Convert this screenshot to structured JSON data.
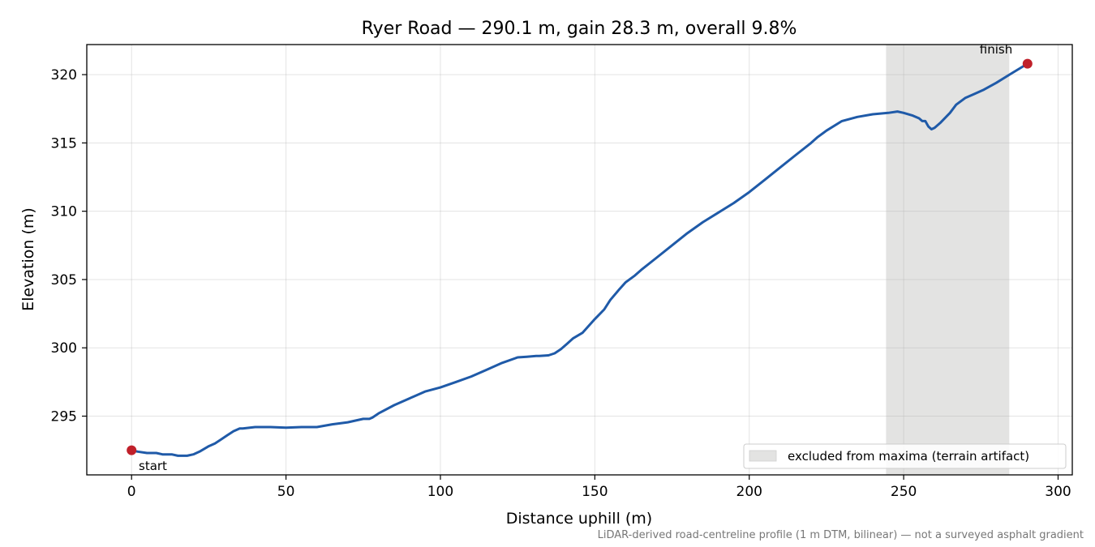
{
  "chart_data": {
    "type": "line",
    "title": "Ryer Road — 290.1 m, gain 28.3 m, overall 9.8%",
    "xlabel": "Distance uphill (m)",
    "ylabel": "Elevation (m)",
    "xlim": [
      -14.5,
      304.6
    ],
    "ylim": [
      290.7,
      322.2
    ],
    "xticks": [
      0,
      50,
      100,
      150,
      200,
      250,
      300
    ],
    "yticks": [
      295,
      300,
      305,
      310,
      315,
      320
    ],
    "xtick_labels": [
      "0",
      "50",
      "100",
      "150",
      "200",
      "250",
      "300"
    ],
    "ytick_labels": [
      "295",
      "300",
      "305",
      "310",
      "315",
      "320"
    ],
    "grid": true,
    "line_color": "#1f5aa8",
    "marker_color": "#c0202a",
    "shade_color": "#e3e3e2",
    "series": [
      {
        "x": [
          0,
          2,
          5,
          8,
          10,
          13,
          15,
          18,
          20,
          22,
          25,
          27,
          29,
          31,
          33,
          35,
          36,
          40,
          45,
          50,
          55,
          60,
          65,
          70,
          75,
          77,
          78,
          80,
          85,
          90,
          95,
          100,
          105,
          110,
          115,
          120,
          125,
          128,
          131,
          132,
          135,
          137,
          139,
          141,
          143,
          146,
          148,
          150,
          153,
          155,
          158,
          160,
          163,
          165,
          170,
          175,
          180,
          185,
          190,
          195,
          200,
          205,
          210,
          215,
          220,
          222,
          225,
          230,
          235,
          240,
          245,
          248,
          250,
          253,
          255,
          256,
          257,
          258,
          259,
          260,
          262,
          265,
          267,
          270,
          273,
          276,
          280,
          285,
          290.1
        ],
        "y": [
          292.5,
          292.4,
          292.3,
          292.3,
          292.2,
          292.2,
          292.1,
          292.1,
          292.2,
          292.4,
          292.8,
          293.0,
          293.3,
          293.6,
          293.9,
          294.1,
          294.1,
          294.2,
          294.2,
          294.15,
          294.2,
          294.2,
          294.4,
          294.55,
          294.8,
          294.8,
          294.9,
          295.2,
          295.8,
          296.3,
          296.8,
          297.1,
          297.5,
          297.9,
          298.4,
          298.9,
          299.3,
          299.35,
          299.4,
          299.4,
          299.45,
          299.6,
          299.9,
          300.3,
          300.7,
          301.1,
          301.6,
          302.1,
          302.8,
          303.5,
          304.3,
          304.8,
          305.3,
          305.7,
          306.6,
          307.5,
          308.4,
          309.2,
          309.9,
          310.6,
          311.4,
          312.3,
          313.2,
          314.1,
          315.0,
          315.4,
          315.9,
          316.6,
          316.9,
          317.1,
          317.2,
          317.3,
          317.2,
          317.0,
          316.8,
          316.6,
          316.6,
          316.2,
          316.0,
          316.1,
          316.5,
          317.2,
          317.8,
          318.3,
          318.6,
          318.9,
          319.4,
          320.1,
          320.8
        ]
      }
    ],
    "excluded_region": {
      "x_start": 244.3,
      "x_end": 284.2,
      "label": "excluded from maxima (terrain artifact)"
    },
    "markers": [
      {
        "label": "start",
        "x": 0,
        "y": 292.5
      },
      {
        "label": "finish",
        "x": 290.1,
        "y": 320.8
      }
    ],
    "legend_position": "lower-right",
    "footnote": "LiDAR-derived road-centreline profile (1 m DTM, bilinear) — not a surveyed asphalt gradient"
  }
}
